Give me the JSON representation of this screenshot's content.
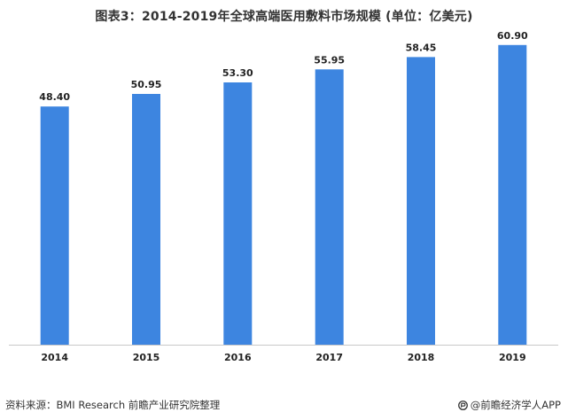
{
  "chart_data": {
    "type": "bar",
    "title": "图表3：2014-2019年全球高端医用敷料市场规模 (单位：亿美元)",
    "categories": [
      "2014",
      "2015",
      "2016",
      "2017",
      "2018",
      "2019"
    ],
    "values": [
      48.4,
      50.95,
      53.3,
      55.95,
      58.45,
      60.9
    ],
    "value_labels": [
      "48.40",
      "50.95",
      "53.30",
      "55.95",
      "58.45",
      "60.90"
    ],
    "ylim": [
      0,
      65
    ],
    "grid": false,
    "legend": "none",
    "bar_color": "#3d85e0",
    "axis_color": "#c8c8c8"
  },
  "footer": {
    "source": "资料来源：BMI Research 前瞻产业研究院整理",
    "brand": "@前瞻经济学人APP"
  }
}
